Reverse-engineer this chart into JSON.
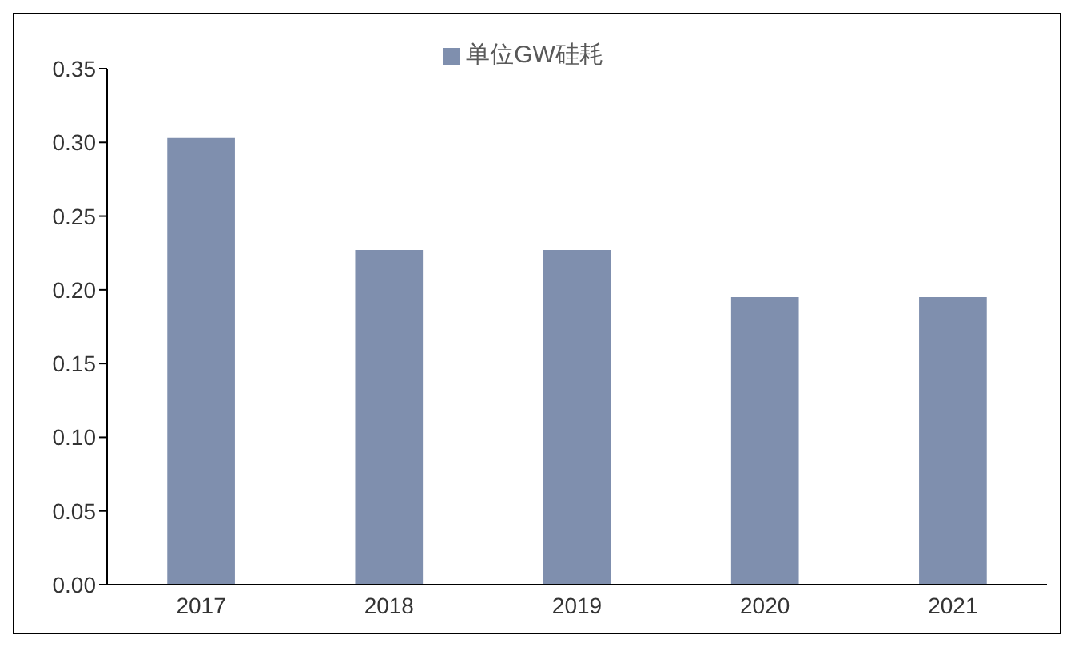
{
  "chart_data": {
    "type": "bar",
    "categories": [
      "2017",
      "2018",
      "2019",
      "2020",
      "2021"
    ],
    "series": [
      {
        "name": "单位GW硅耗",
        "color": "#7f8fae",
        "values": [
          0.303,
          0.227,
          0.227,
          0.195,
          0.195
        ]
      }
    ],
    "ylim": [
      0,
      0.35
    ],
    "yticks": [
      {
        "value": 0,
        "label": "0.00"
      },
      {
        "value": 0.05,
        "label": "0.05"
      },
      {
        "value": 0.1,
        "label": "0.10"
      },
      {
        "value": 0.15,
        "label": "0.15"
      },
      {
        "value": 0.2,
        "label": "0.20"
      },
      {
        "value": 0.25,
        "label": "0.25"
      },
      {
        "value": 0.3,
        "label": "0.30"
      },
      {
        "value": 0.35,
        "label": "0.35"
      }
    ],
    "grid": false,
    "legend": "top"
  }
}
